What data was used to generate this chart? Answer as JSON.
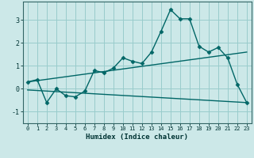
{
  "xlabel": "Humidex (Indice chaleur)",
  "background_color": "#cce8e8",
  "grid_color": "#99cccc",
  "line_color": "#006666",
  "xlim": [
    -0.5,
    23.5
  ],
  "ylim": [
    -1.5,
    3.8
  ],
  "yticks": [
    -1,
    0,
    1,
    2,
    3
  ],
  "xticks": [
    0,
    1,
    2,
    3,
    4,
    5,
    6,
    7,
    8,
    9,
    10,
    11,
    12,
    13,
    14,
    15,
    16,
    17,
    18,
    19,
    20,
    21,
    22,
    23
  ],
  "series1_x": [
    0,
    1,
    2,
    3,
    4,
    5,
    6,
    7,
    8,
    9,
    10,
    11,
    12,
    13,
    14,
    15,
    16,
    17,
    18,
    19,
    20,
    21,
    22,
    23
  ],
  "series1_y": [
    0.3,
    0.4,
    -0.6,
    0.0,
    -0.3,
    -0.35,
    -0.1,
    0.8,
    0.7,
    0.9,
    1.35,
    1.2,
    1.1,
    1.6,
    2.5,
    3.45,
    3.05,
    3.05,
    1.85,
    1.6,
    1.8,
    1.35,
    0.2,
    -0.6
  ],
  "series2_x": [
    0,
    23
  ],
  "series2_y": [
    0.3,
    1.6
  ],
  "series3_x": [
    0,
    23
  ],
  "series3_y": [
    -0.05,
    -0.6
  ]
}
